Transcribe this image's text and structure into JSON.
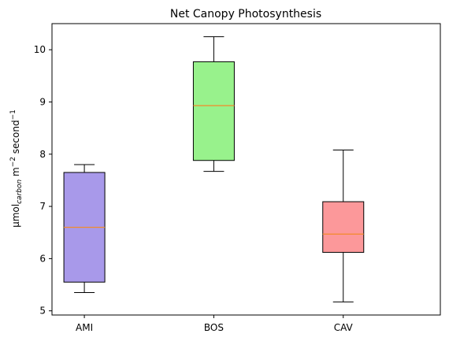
{
  "chart_data": {
    "type": "box",
    "title": "Net Canopy Photosynthesis",
    "ylabel": {
      "base": "μmol",
      "sub": "carbon",
      "mid": " m",
      "sup1": "−2",
      "tail": " second",
      "sup2": "−1"
    },
    "xlabel": "",
    "ylim": [
      4.92,
      10.5
    ],
    "yticks": [
      "5",
      "6",
      "7",
      "8",
      "9",
      "10"
    ],
    "categories": [
      "AMI",
      "BOS",
      "CAV"
    ],
    "boxes": [
      {
        "category": "AMI",
        "whisker_low": 5.35,
        "q1": 5.55,
        "median": 6.6,
        "q3": 7.65,
        "whisker_high": 7.8,
        "color": "#a899ea"
      },
      {
        "category": "BOS",
        "whisker_low": 7.67,
        "q1": 7.88,
        "median": 8.93,
        "q3": 9.77,
        "whisker_high": 10.25,
        "color": "#98f28c"
      },
      {
        "category": "CAV",
        "whisker_low": 5.17,
        "q1": 6.12,
        "median": 6.47,
        "q3": 7.09,
        "whisker_high": 8.08,
        "color": "#fc989a"
      }
    ],
    "median_color": "#f28b2a",
    "grid": false
  }
}
